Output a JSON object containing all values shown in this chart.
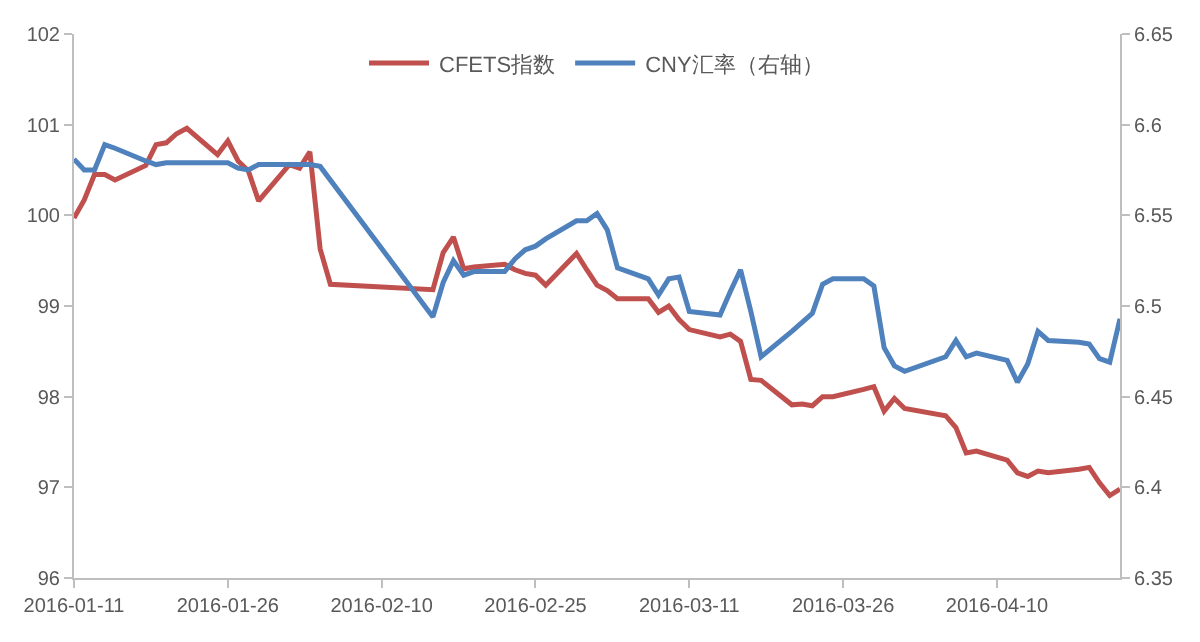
{
  "chart_data": {
    "type": "line",
    "xlim": [
      "2016-01-11",
      "2016-04-22"
    ],
    "xticks": [
      {
        "value": "2016-01-11",
        "label": "2016-01-11"
      },
      {
        "value": "2016-01-26",
        "label": "2016-01-26"
      },
      {
        "value": "2016-02-10",
        "label": "2016-02-10"
      },
      {
        "value": "2016-02-25",
        "label": "2016-02-25"
      },
      {
        "value": "2016-03-11",
        "label": "2016-03-11"
      },
      {
        "value": "2016-03-26",
        "label": "2016-03-26"
      },
      {
        "value": "2016-04-10",
        "label": "2016-04-10"
      }
    ],
    "ylim": [
      96,
      102
    ],
    "yticks": [
      96,
      97,
      98,
      99,
      100,
      101,
      102
    ],
    "y2lim": [
      6.35,
      6.65
    ],
    "y2ticks": [
      6.35,
      6.4,
      6.45,
      6.5,
      6.55,
      6.6,
      6.65
    ],
    "legend": "top",
    "marker": "none",
    "line_style": "solid",
    "series": [
      {
        "name": "CFETS指数",
        "color": "#c0504d",
        "x": [
          "2016-01-11",
          "2016-01-12",
          "2016-01-13",
          "2016-01-14",
          "2016-01-15",
          "2016-01-18",
          "2016-01-19",
          "2016-01-20",
          "2016-01-21",
          "2016-01-22",
          "2016-01-25",
          "2016-01-26",
          "2016-01-27",
          "2016-01-28",
          "2016-01-29",
          "2016-02-01",
          "2016-02-02",
          "2016-02-03",
          "2016-02-04",
          "2016-02-05",
          "2016-02-15",
          "2016-02-16",
          "2016-02-17",
          "2016-02-18",
          "2016-02-19",
          "2016-02-22",
          "2016-02-23",
          "2016-02-24",
          "2016-02-25",
          "2016-02-26",
          "2016-02-29",
          "2016-03-01",
          "2016-03-02",
          "2016-03-03",
          "2016-03-04",
          "2016-03-07",
          "2016-03-08",
          "2016-03-09",
          "2016-03-10",
          "2016-03-11",
          "2016-03-14",
          "2016-03-15",
          "2016-03-16",
          "2016-03-17",
          "2016-03-18",
          "2016-03-21",
          "2016-03-22",
          "2016-03-23",
          "2016-03-24",
          "2016-03-25",
          "2016-03-28",
          "2016-03-29",
          "2016-03-30",
          "2016-03-31",
          "2016-04-01",
          "2016-04-05",
          "2016-04-06",
          "2016-04-07",
          "2016-04-08",
          "2016-04-11",
          "2016-04-12",
          "2016-04-13",
          "2016-04-14",
          "2016-04-15",
          "2016-04-18",
          "2016-04-19",
          "2016-04-20",
          "2016-04-21",
          "2016-04-22"
        ],
        "values": [
          99.97,
          100.17,
          100.45,
          100.45,
          100.39,
          100.55,
          100.78,
          100.8,
          100.9,
          100.96,
          100.67,
          100.82,
          100.6,
          100.49,
          100.16,
          100.56,
          100.52,
          100.7,
          99.63,
          99.24,
          99.18,
          99.59,
          99.76,
          99.41,
          99.43,
          99.46,
          99.4,
          99.36,
          99.34,
          99.23,
          99.58,
          99.4,
          99.23,
          99.17,
          99.08,
          99.08,
          98.93,
          99.0,
          98.85,
          98.74,
          98.66,
          98.69,
          98.61,
          98.19,
          98.18,
          97.91,
          97.92,
          97.9,
          98.0,
          98.0,
          98.08,
          98.11,
          97.84,
          97.98,
          97.87,
          97.79,
          97.66,
          97.38,
          97.4,
          97.3,
          97.16,
          97.12,
          97.18,
          97.16,
          97.2,
          97.22,
          97.05,
          96.91,
          96.98
        ]
      },
      {
        "name": "CNY汇率（右轴）",
        "color": "#4f81bd",
        "axis": "y2",
        "x": [
          "2016-01-11",
          "2016-01-12",
          "2016-01-13",
          "2016-01-14",
          "2016-01-15",
          "2016-01-18",
          "2016-01-19",
          "2016-01-20",
          "2016-01-21",
          "2016-01-22",
          "2016-01-25",
          "2016-01-26",
          "2016-01-27",
          "2016-01-28",
          "2016-01-29",
          "2016-02-01",
          "2016-02-02",
          "2016-02-03",
          "2016-02-04",
          "2016-02-15",
          "2016-02-16",
          "2016-02-17",
          "2016-02-18",
          "2016-02-19",
          "2016-02-22",
          "2016-02-23",
          "2016-02-24",
          "2016-02-25",
          "2016-02-26",
          "2016-02-29",
          "2016-03-01",
          "2016-03-02",
          "2016-03-03",
          "2016-03-04",
          "2016-03-07",
          "2016-03-08",
          "2016-03-09",
          "2016-03-10",
          "2016-03-11",
          "2016-03-14",
          "2016-03-15",
          "2016-03-16",
          "2016-03-17",
          "2016-03-18",
          "2016-03-21",
          "2016-03-22",
          "2016-03-23",
          "2016-03-24",
          "2016-03-25",
          "2016-03-28",
          "2016-03-29",
          "2016-03-30",
          "2016-03-31",
          "2016-04-01",
          "2016-04-05",
          "2016-04-06",
          "2016-04-07",
          "2016-04-08",
          "2016-04-11",
          "2016-04-12",
          "2016-04-13",
          "2016-04-14",
          "2016-04-15",
          "2016-04-18",
          "2016-04-19",
          "2016-04-20",
          "2016-04-21",
          "2016-04-22"
        ],
        "values": [
          6.581,
          6.575,
          6.575,
          6.589,
          6.587,
          6.58,
          6.578,
          6.579,
          6.579,
          6.579,
          6.579,
          6.579,
          6.576,
          6.575,
          6.578,
          6.578,
          6.578,
          6.578,
          6.577,
          6.494,
          6.513,
          6.525,
          6.517,
          6.519,
          6.519,
          6.526,
          6.531,
          6.533,
          6.537,
          6.547,
          6.547,
          6.551,
          6.542,
          6.521,
          6.515,
          6.506,
          6.515,
          6.516,
          6.497,
          6.495,
          6.508,
          6.52,
          6.497,
          6.472,
          6.486,
          6.491,
          6.496,
          6.512,
          6.515,
          6.515,
          6.511,
          6.477,
          6.467,
          6.464,
          6.472,
          6.481,
          6.472,
          6.474,
          6.47,
          6.458,
          6.468,
          6.486,
          6.481,
          6.48,
          6.479,
          6.471,
          6.469,
          6.493
        ]
      }
    ]
  }
}
